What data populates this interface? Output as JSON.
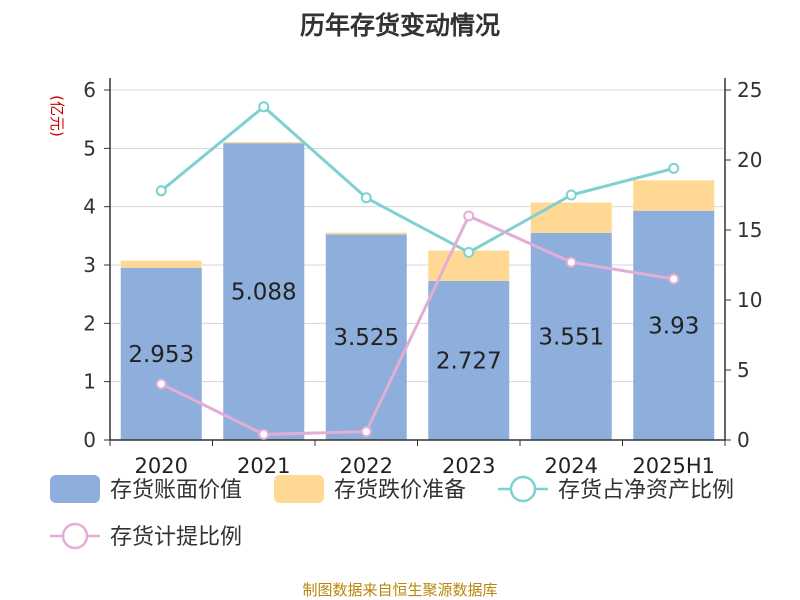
{
  "chart_data": {
    "type": "bar",
    "title": "历年存货变动情况",
    "categories": [
      "2020",
      "2021",
      "2022",
      "2023",
      "2024",
      "2025H1"
    ],
    "ylabel_left": "(亿元)",
    "ylabel_right": "%",
    "ylim_left": [
      0,
      6
    ],
    "yticks_left": [
      "0",
      "1",
      "2",
      "3",
      "4",
      "5",
      "6"
    ],
    "ylim_right": [
      0,
      25
    ],
    "yticks_right": [
      "0",
      "5",
      "10",
      "15",
      "20",
      "25"
    ],
    "grid": true,
    "legend_position": "bottom",
    "series": [
      {
        "name": "存货账面价值",
        "kind": "bar",
        "axis": "left",
        "color": "#8eaedb",
        "values": [
          2.953,
          5.088,
          3.525,
          2.727,
          3.551,
          3.93
        ],
        "labels": [
          "2.953",
          "5.088",
          "3.525",
          "2.727",
          "3.551",
          "3.93"
        ]
      },
      {
        "name": "存货跌价准备",
        "kind": "bar",
        "axis": "left",
        "stacked": true,
        "color": "#ffd894",
        "values": [
          0.12,
          0.02,
          0.03,
          0.52,
          0.52,
          0.52
        ]
      },
      {
        "name": "存货占净资产比例",
        "kind": "line",
        "axis": "right",
        "color": "#7fd1d1",
        "values": [
          17.8,
          23.8,
          17.3,
          13.4,
          17.5,
          19.4
        ]
      },
      {
        "name": "存货计提比例",
        "kind": "line",
        "axis": "right",
        "color": "#e3aed6",
        "values": [
          4.0,
          0.4,
          0.6,
          16.0,
          12.7,
          11.5
        ]
      }
    ]
  },
  "source_text": "制图数据来自恒生聚源数据库"
}
